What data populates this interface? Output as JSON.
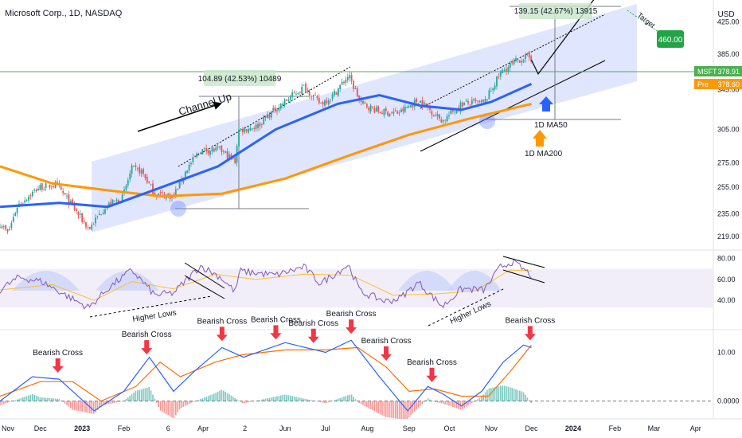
{
  "header": {
    "symbol_title": "Microsoft Corp., 1D, NASDAQ",
    "currency": "USD"
  },
  "colors": {
    "bull": "#26a69a",
    "bear": "#ef5350",
    "ma50": "#2962ff",
    "ma200": "#ff9800",
    "channel": "#c7d2fb",
    "rsi": "#7e57c2",
    "rsi_ma": "#fbc02d",
    "macd": "#2962ff",
    "signal": "#ff6d00",
    "green_label": "#22a446",
    "arrow_red": "#f23645"
  },
  "chart_data": [
    {
      "type": "candlestick",
      "title": "Microsoft Corp., 1D, NASDAQ",
      "ylim": [
        210,
        455
      ],
      "y_ticks": [
        "219.00",
        "235.00",
        "255.00",
        "275.00",
        "305.00",
        "345.00",
        "385.00",
        "425.00"
      ],
      "x_ticks": [
        "Nov",
        "Dec",
        "2023",
        "Feb",
        "6",
        "Apr",
        "2",
        "Jun",
        "Jul",
        "Aug",
        "Sep",
        "Oct",
        "Nov",
        "Dec",
        "2024",
        "Feb",
        "Mar",
        "Apr"
      ],
      "price_path": [
        [
          "2022-11-01",
          228
        ],
        [
          "2022-11-07",
          221
        ],
        [
          "2022-11-14",
          241
        ],
        [
          "2022-11-21",
          247
        ],
        [
          "2022-11-30",
          255
        ],
        [
          "2022-12-13",
          257
        ],
        [
          "2022-12-28",
          236
        ],
        [
          "2023-01-06",
          224
        ],
        [
          "2023-01-18",
          240
        ],
        [
          "2023-01-31",
          247
        ],
        [
          "2023-02-07",
          270
        ],
        [
          "2023-02-14",
          268
        ],
        [
          "2023-02-24",
          250
        ],
        [
          "2023-03-10",
          248
        ],
        [
          "2023-03-20",
          270
        ],
        [
          "2023-03-30",
          286
        ],
        [
          "2023-04-14",
          286
        ],
        [
          "2023-04-25",
          276
        ],
        [
          "2023-04-27",
          304
        ],
        [
          "2023-05-11",
          308
        ],
        [
          "2023-05-25",
          325
        ],
        [
          "2023-06-15",
          348
        ],
        [
          "2023-06-27",
          330
        ],
        [
          "2023-07-06",
          338
        ],
        [
          "2023-07-18",
          360
        ],
        [
          "2023-07-27",
          331
        ],
        [
          "2023-08-10",
          322
        ],
        [
          "2023-08-25",
          321
        ],
        [
          "2023-09-08",
          334
        ],
        [
          "2023-09-26",
          313
        ],
        [
          "2023-10-10",
          330
        ],
        [
          "2023-10-19",
          331
        ],
        [
          "2023-10-27",
          331
        ],
        [
          "2023-11-08",
          363
        ],
        [
          "2023-11-20",
          377
        ],
        [
          "2023-11-28",
          382
        ],
        [
          "2023-12-01",
          378.91
        ]
      ],
      "ma50": [
        [
          "2022-11-01",
          240
        ],
        [
          "2022-12-15",
          243
        ],
        [
          "2023-01-20",
          240
        ],
        [
          "2023-03-01",
          255
        ],
        [
          "2023-04-12",
          272
        ],
        [
          "2023-05-25",
          305
        ],
        [
          "2023-07-10",
          330
        ],
        [
          "2023-08-10",
          339
        ],
        [
          "2023-09-10",
          328
        ],
        [
          "2023-10-10",
          324
        ],
        [
          "2023-11-01",
          332
        ],
        [
          "2023-12-01",
          351
        ]
      ],
      "ma200": [
        [
          "2022-11-01",
          272
        ],
        [
          "2022-12-10",
          258
        ],
        [
          "2023-01-25",
          252
        ],
        [
          "2023-03-01",
          248
        ],
        [
          "2023-04-15",
          250
        ],
        [
          "2023-06-01",
          262
        ],
        [
          "2023-07-20",
          282
        ],
        [
          "2023-09-01",
          300
        ],
        [
          "2023-10-15",
          315
        ],
        [
          "2023-12-01",
          330
        ]
      ],
      "projection_path": [
        [
          "2023-12-01",
          378
        ],
        [
          "2023-12-06",
          362
        ],
        [
          "2024-01-22",
          470
        ]
      ],
      "target_point": [
        "2024-01-25",
        478
      ],
      "annotations": {
        "channel_label": "Channel Up",
        "range_measure_1": "104.89 (42.53%) 10489",
        "range_measure_2": "139.15 (42.67%) 13915",
        "target_label": "Target",
        "target_value": "460.00",
        "ma50_label": "1D MA50",
        "ma200_label": "1D MA200"
      },
      "price_labels": {
        "last_ticker": "MSFT",
        "last_value": "378.91",
        "pre_ticker": "Pre",
        "pre_value": "378.60"
      }
    },
    {
      "type": "line",
      "series": [
        "RSI",
        "RSI MA"
      ],
      "ylim": [
        15,
        85
      ],
      "y_ticks": [
        "80.00",
        "60.00",
        "40.00"
      ],
      "band": [
        33,
        70
      ],
      "rsi": [
        [
          "2022-11-01",
          50
        ],
        [
          "2022-11-15",
          62
        ],
        [
          "2022-12-02",
          58
        ],
        [
          "2022-12-28",
          39
        ],
        [
          "2023-01-06",
          33
        ],
        [
          "2023-01-20",
          51
        ],
        [
          "2023-02-07",
          69
        ],
        [
          "2023-02-24",
          45
        ],
        [
          "2023-03-10",
          47
        ],
        [
          "2023-03-30",
          73
        ],
        [
          "2023-04-14",
          62
        ],
        [
          "2023-04-25",
          48
        ],
        [
          "2023-04-28",
          68
        ],
        [
          "2023-05-25",
          64
        ],
        [
          "2023-06-15",
          72
        ],
        [
          "2023-06-27",
          56
        ],
        [
          "2023-07-18",
          74
        ],
        [
          "2023-07-27",
          48
        ],
        [
          "2023-08-15",
          39
        ],
        [
          "2023-08-25",
          42
        ],
        [
          "2023-09-08",
          57
        ],
        [
          "2023-09-26",
          34
        ],
        [
          "2023-10-10",
          51
        ],
        [
          "2023-10-27",
          50
        ],
        [
          "2023-11-08",
          72
        ],
        [
          "2023-11-17",
          77
        ],
        [
          "2023-12-01",
          64
        ]
      ],
      "rsi_ma": [
        [
          "2022-11-01",
          50
        ],
        [
          "2022-12-10",
          55
        ],
        [
          "2023-01-10",
          40
        ],
        [
          "2023-02-07",
          58
        ],
        [
          "2023-03-10",
          51
        ],
        [
          "2023-04-10",
          65
        ],
        [
          "2023-05-10",
          60
        ],
        [
          "2023-06-15",
          65
        ],
        [
          "2023-07-20",
          64
        ],
        [
          "2023-08-20",
          45
        ],
        [
          "2023-09-20",
          46
        ],
        [
          "2023-10-20",
          49
        ],
        [
          "2023-11-15",
          69
        ],
        [
          "2023-12-01",
          68
        ]
      ],
      "annotations": {
        "higher_lows_1": "Higher Lows",
        "higher_lows_2": "Higher Lows"
      }
    },
    {
      "type": "line",
      "series": [
        "MACD",
        "Signal",
        "Histogram"
      ],
      "ylim": [
        -3,
        14
      ],
      "y_ticks": [
        "10.00",
        "0.0000"
      ],
      "macd": [
        [
          "2022-11-01",
          0
        ],
        [
          "2022-11-25",
          5
        ],
        [
          "2022-12-15",
          4.5
        ],
        [
          "2023-01-10",
          -2
        ],
        [
          "2023-02-01",
          2
        ],
        [
          "2023-02-20",
          9
        ],
        [
          "2023-03-10",
          2
        ],
        [
          "2023-03-25",
          6
        ],
        [
          "2023-04-15",
          11
        ],
        [
          "2023-05-01",
          9
        ],
        [
          "2023-06-01",
          12
        ],
        [
          "2023-07-01",
          10
        ],
        [
          "2023-07-20",
          12.5
        ],
        [
          "2023-08-10",
          5
        ],
        [
          "2023-08-31",
          -2
        ],
        [
          "2023-09-15",
          3
        ],
        [
          "2023-09-26",
          1.5
        ],
        [
          "2023-10-10",
          -1
        ],
        [
          "2023-10-25",
          2
        ],
        [
          "2023-11-10",
          8
        ],
        [
          "2023-11-25",
          11.5
        ],
        [
          "2023-12-01",
          11
        ]
      ],
      "signal": [
        [
          "2022-11-01",
          1
        ],
        [
          "2022-12-01",
          4
        ],
        [
          "2022-12-25",
          4
        ],
        [
          "2023-01-15",
          0
        ],
        [
          "2023-02-10",
          3
        ],
        [
          "2023-02-28",
          8
        ],
        [
          "2023-03-15",
          5
        ],
        [
          "2023-04-10",
          8
        ],
        [
          "2023-04-30",
          9.5
        ],
        [
          "2023-06-01",
          10.5
        ],
        [
          "2023-07-01",
          10.5
        ],
        [
          "2023-07-25",
          11
        ],
        [
          "2023-08-15",
          7
        ],
        [
          "2023-09-01",
          2
        ],
        [
          "2023-09-20",
          2.5
        ],
        [
          "2023-10-10",
          1
        ],
        [
          "2023-10-30",
          1
        ],
        [
          "2023-11-15",
          6
        ],
        [
          "2023-12-01",
          11.5
        ]
      ],
      "cross_label": "Bearish Cross",
      "bearish_crosses": [
        "2022-12-14",
        "2023-02-18",
        "2023-04-15",
        "2023-05-25",
        "2023-06-22",
        "2023-07-20",
        "2023-08-15",
        "2023-09-18",
        "2023-11-30"
      ]
    }
  ]
}
